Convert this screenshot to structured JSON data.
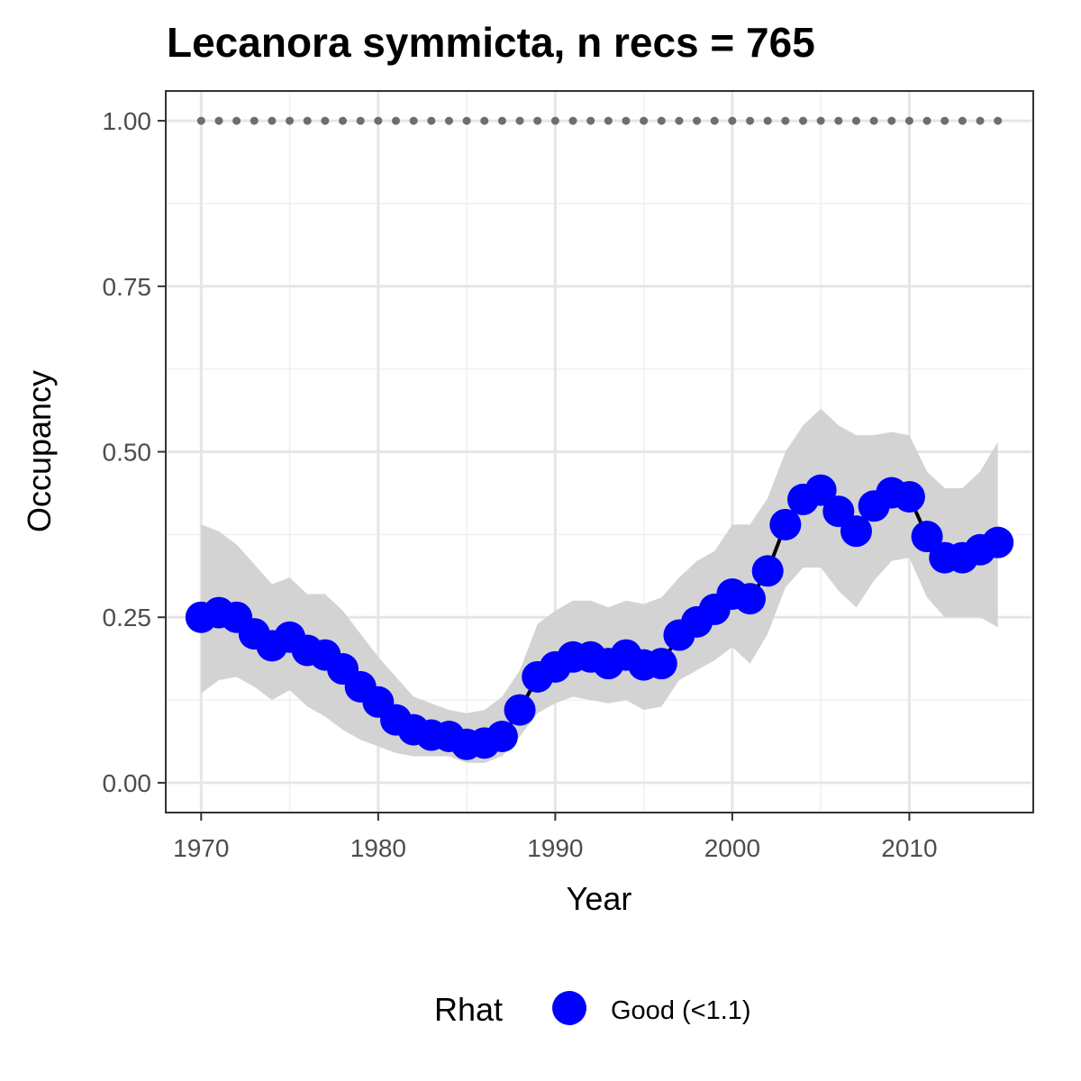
{
  "chart_data": {
    "type": "line",
    "title": "Lecanora symmicta, n recs = 765",
    "xlabel": "Year",
    "ylabel": "Occupancy",
    "xlim": [
      1968,
      2017
    ],
    "ylim": [
      -0.045,
      1.045
    ],
    "x_ticks": [
      1970,
      1980,
      1990,
      2000,
      2010
    ],
    "x_tick_labels": [
      "1970",
      "1980",
      "1990",
      "2000",
      "2010"
    ],
    "y_ticks": [
      0,
      0.25,
      0.5,
      0.75,
      1.0
    ],
    "y_tick_labels": [
      "0.00",
      "0.25",
      "0.50",
      "0.75",
      "1.00"
    ],
    "grid": true,
    "x": [
      1970,
      1971,
      1972,
      1973,
      1974,
      1975,
      1976,
      1977,
      1978,
      1979,
      1980,
      1981,
      1982,
      1983,
      1984,
      1985,
      1986,
      1987,
      1988,
      1989,
      1990,
      1991,
      1992,
      1993,
      1994,
      1995,
      1996,
      1997,
      1998,
      1999,
      2000,
      2001,
      2002,
      2003,
      2004,
      2005,
      2006,
      2007,
      2008,
      2009,
      2010,
      2011,
      2012,
      2013,
      2014,
      2015
    ],
    "series": [
      {
        "values": [
          0.25,
          0.257,
          0.25,
          0.225,
          0.207,
          0.22,
          0.2,
          0.193,
          0.172,
          0.145,
          0.122,
          0.095,
          0.08,
          0.072,
          0.07,
          0.058,
          0.06,
          0.07,
          0.11,
          0.16,
          0.175,
          0.19,
          0.19,
          0.18,
          0.193,
          0.178,
          0.18,
          0.223,
          0.243,
          0.262,
          0.285,
          0.278,
          0.32,
          0.39,
          0.428,
          0.442,
          0.41,
          0.38,
          0.418,
          0.438,
          0.432,
          0.372,
          0.34,
          0.34,
          0.352,
          0.363
        ],
        "lower": [
          0.135,
          0.155,
          0.16,
          0.145,
          0.125,
          0.14,
          0.115,
          0.1,
          0.08,
          0.065,
          0.055,
          0.045,
          0.04,
          0.04,
          0.04,
          0.03,
          0.03,
          0.04,
          0.07,
          0.105,
          0.12,
          0.13,
          0.125,
          0.12,
          0.125,
          0.11,
          0.115,
          0.155,
          0.17,
          0.185,
          0.205,
          0.18,
          0.225,
          0.295,
          0.325,
          0.325,
          0.29,
          0.265,
          0.305,
          0.335,
          0.34,
          0.28,
          0.25,
          0.25,
          0.25,
          0.235
        ],
        "upper": [
          0.39,
          0.38,
          0.36,
          0.33,
          0.3,
          0.31,
          0.285,
          0.285,
          0.26,
          0.225,
          0.19,
          0.16,
          0.13,
          0.12,
          0.11,
          0.105,
          0.11,
          0.13,
          0.17,
          0.24,
          0.26,
          0.275,
          0.275,
          0.265,
          0.275,
          0.27,
          0.28,
          0.31,
          0.335,
          0.35,
          0.39,
          0.39,
          0.43,
          0.5,
          0.54,
          0.565,
          0.54,
          0.525,
          0.525,
          0.53,
          0.525,
          0.47,
          0.445,
          0.445,
          0.47,
          0.515
        ],
        "color": "#0000ff",
        "line_color": "#000000",
        "ribbon_color": "#d3d3d3"
      }
    ],
    "reference_line": {
      "value": 1.0,
      "style": "dotted",
      "color": "#6e6e6e"
    },
    "legend": {
      "position": "bottom",
      "title": "Rhat",
      "entries": [
        {
          "label": "Good (<1.1)",
          "color": "#0000ff"
        }
      ]
    }
  }
}
